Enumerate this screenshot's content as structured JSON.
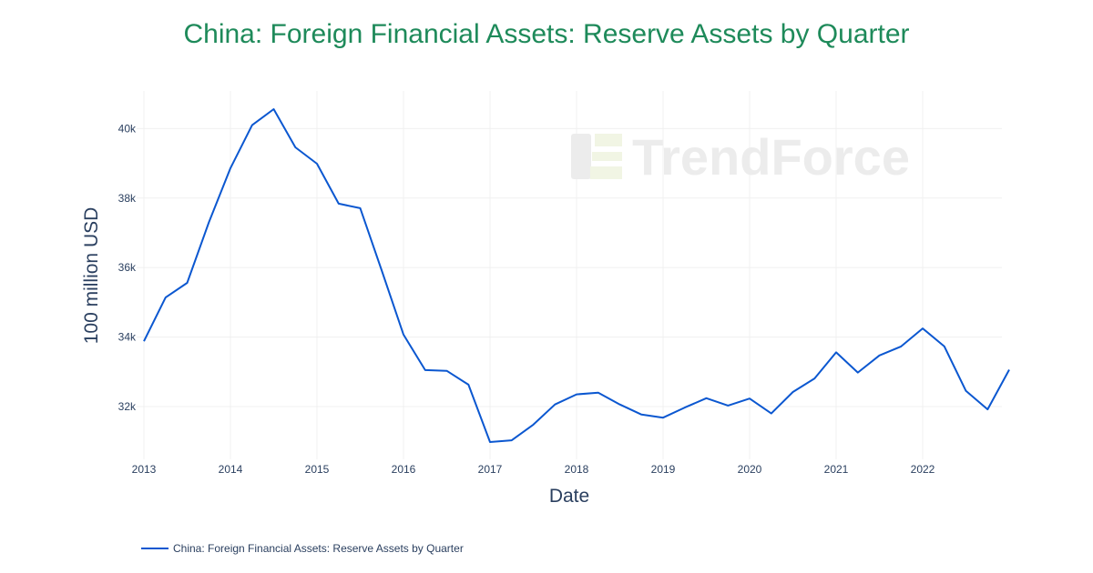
{
  "title": "China: Foreign Financial Assets: Reserve Assets by Quarter",
  "watermark": "TrendForce",
  "legend": {
    "label": "China: Foreign Financial Assets: Reserve Assets by Quarter",
    "color": "#0b57d0"
  },
  "colors": {
    "title": "#1e8a5a",
    "line": "#0b57d0",
    "grid": "#f0f0f0",
    "axis_text": "#2a3f5f"
  },
  "chart_data": {
    "type": "line",
    "title": "China: Foreign Financial Assets: Reserve Assets by Quarter",
    "xlabel": "Date",
    "ylabel": "100 million USD",
    "x_ticks": [
      "2013",
      "2014",
      "2015",
      "2016",
      "2017",
      "2018",
      "2019",
      "2020",
      "2021",
      "2022"
    ],
    "y_ticks": [
      "32k",
      "34k",
      "36k",
      "38k",
      "40k"
    ],
    "ylim": [
      30500,
      41000
    ],
    "grid": true,
    "legend_position": "bottom-left",
    "x": [
      "2012-12",
      "2013-03",
      "2013-06",
      "2013-09",
      "2013-12",
      "2014-03",
      "2014-06",
      "2014-09",
      "2014-12",
      "2015-03",
      "2015-06",
      "2015-09",
      "2015-12",
      "2016-03",
      "2016-06",
      "2016-09",
      "2016-12",
      "2017-03",
      "2017-06",
      "2017-09",
      "2017-12",
      "2018-03",
      "2018-06",
      "2018-09",
      "2018-12",
      "2019-03",
      "2019-06",
      "2019-09",
      "2019-12",
      "2020-03",
      "2020-06",
      "2020-09",
      "2020-12",
      "2021-03",
      "2021-06",
      "2021-09",
      "2021-12",
      "2022-03",
      "2022-06",
      "2022-09",
      "2022-12"
    ],
    "series": [
      {
        "name": "China: Foreign Financial Assets: Reserve Assets by Quarter",
        "values": [
          33880,
          35140,
          35560,
          37300,
          38860,
          40100,
          40560,
          39460,
          38990,
          37840,
          37710,
          35900,
          34070,
          33050,
          33030,
          32630,
          30980,
          31030,
          31480,
          32060,
          32350,
          32400,
          32060,
          31770,
          31680,
          31970,
          32240,
          32030,
          32230,
          31800,
          32420,
          32810,
          33560,
          32980,
          33470,
          33730,
          34250,
          33730,
          32450,
          31920,
          33060
        ]
      }
    ]
  }
}
